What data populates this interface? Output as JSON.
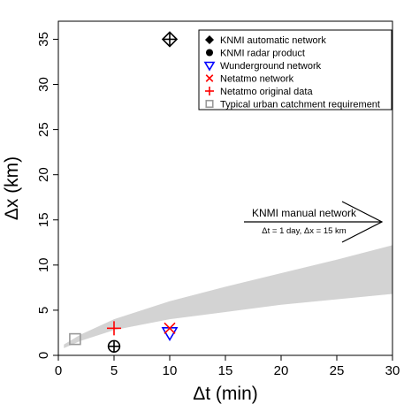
{
  "chart_data": {
    "type": "scatter",
    "xlabel": "Δt (min)",
    "ylabel": "Δx (km)",
    "xlim": [
      0,
      30
    ],
    "ylim": [
      0,
      37
    ],
    "x_ticks": [
      0,
      5,
      10,
      15,
      20,
      25,
      30
    ],
    "y_ticks": [
      0,
      5,
      10,
      15,
      20,
      25,
      30,
      35
    ],
    "grid": false,
    "legend_position": "top-right",
    "shaded_band": {
      "color": "#d3d3d3",
      "x": [
        0.5,
        2,
        5,
        10,
        15,
        20,
        25,
        30
      ],
      "lower": [
        0.8,
        1.6,
        2.8,
        4.0,
        4.8,
        5.6,
        6.2,
        6.8
      ],
      "upper": [
        1.2,
        2.3,
        4.0,
        6.0,
        7.6,
        9.1,
        10.6,
        12.2
      ]
    },
    "series": [
      {
        "name": "KNMI automatic network",
        "marker": "diamond-plus",
        "color": "#000000",
        "points": [
          {
            "x": 10,
            "y": 35
          }
        ]
      },
      {
        "name": "KNMI radar product",
        "marker": "circle-plus",
        "color": "#000000",
        "points": [
          {
            "x": 5,
            "y": 1
          }
        ]
      },
      {
        "name": "Wunderground network",
        "marker": "triangle-down",
        "color": "#0000ff",
        "points": [
          {
            "x": 10,
            "y": 2.5
          }
        ]
      },
      {
        "name": "Netatmo network",
        "marker": "cross",
        "color": "#ff0000",
        "points": [
          {
            "x": 10,
            "y": 3
          }
        ]
      },
      {
        "name": "Netatmo original data",
        "marker": "plus",
        "color": "#ff0000",
        "points": [
          {
            "x": 5,
            "y": 3
          }
        ]
      },
      {
        "name": "Typical urban catchment requirement",
        "marker": "square",
        "color": "#999999",
        "points": [
          {
            "x": 1.5,
            "y": 1.8
          }
        ]
      }
    ],
    "annotation": {
      "label": "KNMI manual network",
      "sublabel": "Δt = 1 day, Δx = 15 km",
      "arrow_direction": "right",
      "y": 15
    }
  }
}
